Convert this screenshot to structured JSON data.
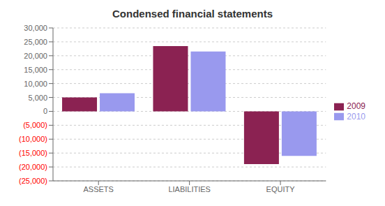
{
  "chart_data": {
    "type": "bar",
    "title": "Condensed financial statements",
    "categories": [
      "ASSETS",
      "LIABILITIES",
      "EQUITY"
    ],
    "series": [
      {
        "name": "2009",
        "color": "#8B2252",
        "values": [
          5000,
          23500,
          -19000
        ]
      },
      {
        "name": "2010",
        "color": "#9999EE",
        "values": [
          6500,
          21500,
          -16000
        ]
      }
    ],
    "ylim": [
      -25000,
      30000
    ],
    "yticks": [
      {
        "value": 30000,
        "label": "30,000"
      },
      {
        "value": 25000,
        "label": "25,000"
      },
      {
        "value": 20000,
        "label": "20,000"
      },
      {
        "value": 15000,
        "label": "15,000"
      },
      {
        "value": 10000,
        "label": "10,000"
      },
      {
        "value": 5000,
        "label": "5,000"
      },
      0,
      {
        "value": -5000,
        "label": "(5,000)"
      },
      {
        "value": -10000,
        "label": "(10,000)"
      },
      {
        "value": -15000,
        "label": "(15,000)"
      },
      {
        "value": -20000,
        "label": "(20,000)"
      },
      {
        "value": -25000,
        "label": "(25,000)"
      }
    ],
    "grid": true,
    "legend": "right"
  }
}
